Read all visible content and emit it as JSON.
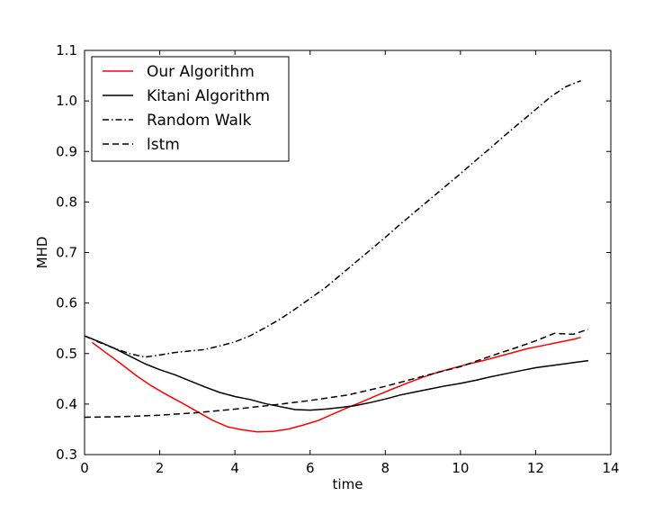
{
  "chart_data": {
    "type": "line",
    "title": "",
    "xlabel": "time",
    "ylabel": "MHD",
    "xlim": [
      0,
      14
    ],
    "ylim": [
      0.3,
      1.1
    ],
    "xticks": [
      "0",
      "2",
      "4",
      "6",
      "8",
      "10",
      "12",
      "14"
    ],
    "yticks": [
      "0.3",
      "0.4",
      "0.5",
      "0.6",
      "0.7",
      "0.8",
      "0.9",
      "1.0",
      "1.1"
    ],
    "grid": false,
    "legend_position": "top-left",
    "series": [
      {
        "name": "Our Algorithm",
        "color": "#ff0000",
        "dash": "solid",
        "x": [
          0.2,
          0.6,
          1.0,
          1.4,
          1.8,
          2.2,
          2.6,
          3.0,
          3.4,
          3.8,
          4.2,
          4.6,
          5.0,
          5.4,
          5.8,
          6.2,
          6.6,
          7.0,
          7.4,
          7.8,
          8.2,
          8.6,
          9.0,
          9.4,
          9.8,
          10.2,
          10.6,
          11.0,
          11.4,
          11.8,
          12.2,
          12.6,
          13.0,
          13.2
        ],
        "y": [
          0.522,
          0.5,
          0.478,
          0.455,
          0.435,
          0.418,
          0.402,
          0.385,
          0.368,
          0.355,
          0.349,
          0.345,
          0.346,
          0.35,
          0.358,
          0.367,
          0.38,
          0.393,
          0.405,
          0.418,
          0.43,
          0.442,
          0.453,
          0.463,
          0.471,
          0.479,
          0.486,
          0.494,
          0.502,
          0.51,
          0.516,
          0.522,
          0.528,
          0.532
        ]
      },
      {
        "name": "Kitani Algorithm",
        "color": "#000000",
        "dash": "solid",
        "x": [
          0.0,
          0.4,
          0.8,
          1.2,
          1.6,
          2.0,
          2.4,
          2.8,
          3.2,
          3.6,
          4.0,
          4.4,
          4.8,
          5.2,
          5.6,
          6.0,
          6.4,
          6.8,
          7.2,
          7.6,
          8.0,
          8.4,
          8.8,
          9.2,
          9.6,
          10.0,
          10.4,
          10.8,
          11.2,
          11.6,
          12.0,
          12.4,
          12.8,
          13.2,
          13.4
        ],
        "y": [
          0.535,
          0.523,
          0.51,
          0.495,
          0.48,
          0.468,
          0.458,
          0.446,
          0.434,
          0.423,
          0.415,
          0.409,
          0.401,
          0.395,
          0.389,
          0.388,
          0.39,
          0.393,
          0.397,
          0.403,
          0.41,
          0.418,
          0.424,
          0.43,
          0.436,
          0.441,
          0.447,
          0.454,
          0.46,
          0.466,
          0.472,
          0.476,
          0.48,
          0.484,
          0.486
        ]
      },
      {
        "name": "Random Walk",
        "color": "#000000",
        "dash": "dashdot",
        "x": [
          0.0,
          0.4,
          0.8,
          1.2,
          1.6,
          2.0,
          2.4,
          2.8,
          3.2,
          3.6,
          4.0,
          4.4,
          4.8,
          5.2,
          5.6,
          6.0,
          6.4,
          6.8,
          7.2,
          7.6,
          8.0,
          8.4,
          8.8,
          9.2,
          9.6,
          10.0,
          10.4,
          10.8,
          11.2,
          11.6,
          12.0,
          12.4,
          12.8,
          13.2
        ],
        "y": [
          0.535,
          0.522,
          0.51,
          0.5,
          0.493,
          0.497,
          0.502,
          0.505,
          0.508,
          0.515,
          0.523,
          0.535,
          0.551,
          0.568,
          0.588,
          0.609,
          0.63,
          0.655,
          0.68,
          0.705,
          0.73,
          0.756,
          0.781,
          0.806,
          0.831,
          0.856,
          0.882,
          0.907,
          0.933,
          0.958,
          0.983,
          1.008,
          1.028,
          1.04
        ]
      },
      {
        "name": "lstm",
        "color": "#000000",
        "dash": "dashed",
        "x": [
          0.0,
          1.0,
          2.0,
          3.0,
          4.0,
          5.0,
          6.0,
          7.0,
          8.0,
          9.0,
          10.0,
          11.0,
          11.5,
          12.0,
          12.5,
          13.0,
          13.4
        ],
        "y": [
          0.374,
          0.375,
          0.378,
          0.383,
          0.39,
          0.398,
          0.407,
          0.418,
          0.435,
          0.455,
          0.474,
          0.5,
          0.512,
          0.525,
          0.54,
          0.538,
          0.548
        ]
      }
    ]
  }
}
